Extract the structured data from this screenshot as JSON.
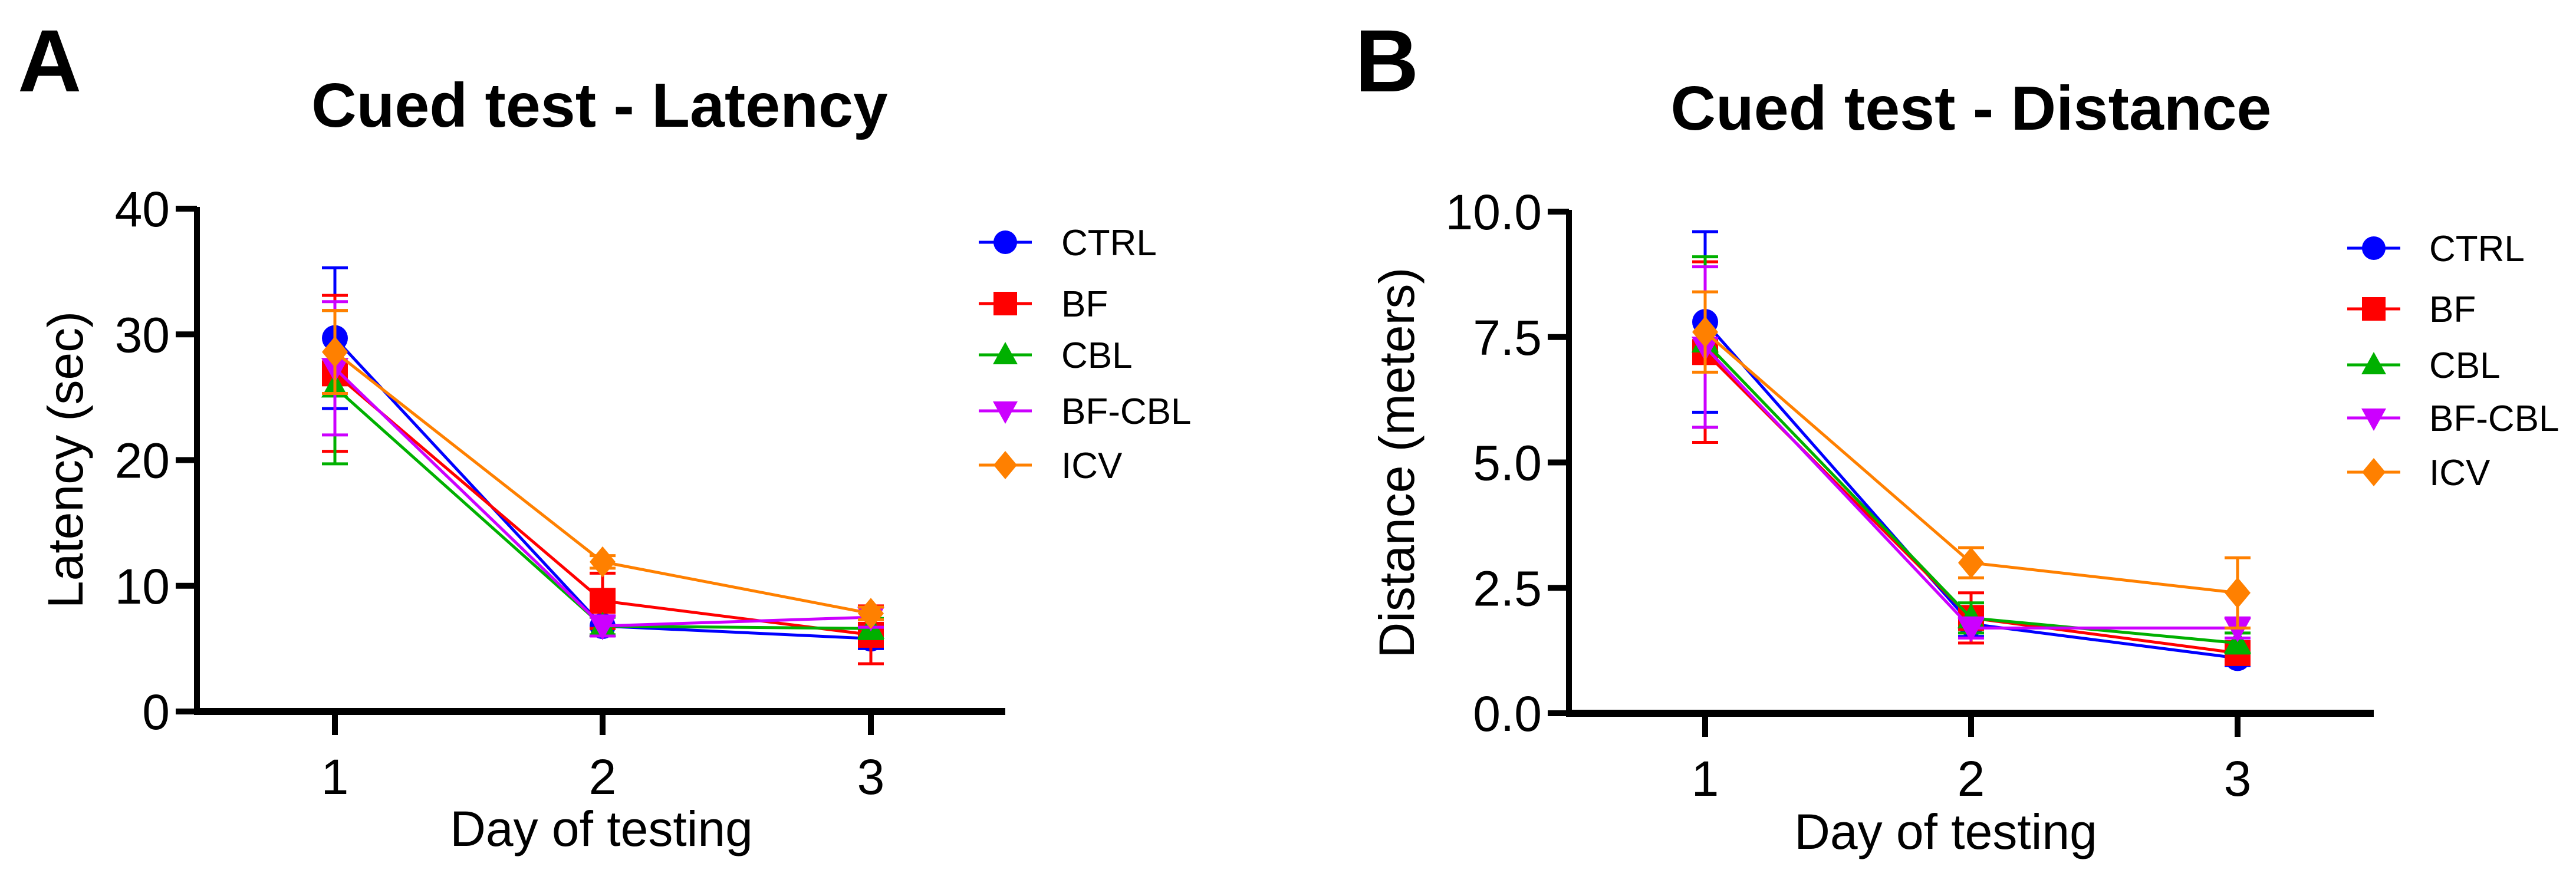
{
  "chart_data": [
    {
      "type": "line",
      "panel": "A",
      "title": "Cued test - Latency",
      "xlabel": "Day of testing",
      "ylabel": "Latency (sec)",
      "x": [
        1,
        2,
        3
      ],
      "xticks": [
        "1",
        "2",
        "3"
      ],
      "ylim": [
        0,
        40
      ],
      "yticks": [
        0,
        10,
        20,
        30,
        40
      ],
      "ytick_labels": [
        "0",
        "10",
        "20",
        "30",
        "40"
      ],
      "grid": false,
      "legend_position": "top-right",
      "series": [
        {
          "name": "CTRL",
          "color": "#0000ff",
          "marker": "circle",
          "values": [
            29.7,
            6.8,
            5.8
          ],
          "err": [
            5.6,
            0.8,
            0.8
          ]
        },
        {
          "name": "BF",
          "color": "#ff0000",
          "marker": "square",
          "values": [
            26.9,
            8.8,
            6.1
          ],
          "err": [
            6.2,
            2.2,
            2.3
          ]
        },
        {
          "name": "CBL",
          "color": "#00b000",
          "marker": "triangle-up",
          "values": [
            25.8,
            6.8,
            6.6
          ],
          "err": [
            6.1,
            0.7,
            0.8
          ]
        },
        {
          "name": "BF-CBL",
          "color": "#cc00ff",
          "marker": "triangle-down",
          "values": [
            27.3,
            6.8,
            7.5
          ],
          "err": [
            5.3,
            0.8,
            0.8
          ]
        },
        {
          "name": "ICV",
          "color": "#ff8000",
          "marker": "diamond",
          "values": [
            28.6,
            11.9,
            7.8
          ],
          "err": [
            3.3,
            0.5,
            0.5
          ]
        }
      ]
    },
    {
      "type": "line",
      "panel": "B",
      "title": "Cued test - Distance",
      "xlabel": "Day of testing",
      "ylabel": "Distance (meters)",
      "x": [
        1,
        2,
        3
      ],
      "xticks": [
        "1",
        "2",
        "3"
      ],
      "ylim": [
        0,
        10
      ],
      "yticks": [
        0,
        2.5,
        5,
        7.5,
        10
      ],
      "ytick_labels": [
        "0.0",
        "2.5",
        "5.0",
        "7.5",
        "10.0"
      ],
      "grid": false,
      "legend_position": "top-right",
      "series": [
        {
          "name": "CTRL",
          "color": "#0000ff",
          "marker": "circle",
          "values": [
            7.8,
            1.78,
            1.1
          ],
          "err": [
            1.8,
            0.25,
            0.15
          ]
        },
        {
          "name": "BF",
          "color": "#ff0000",
          "marker": "square",
          "values": [
            7.2,
            1.9,
            1.2
          ],
          "err": [
            1.8,
            0.5,
            0.2
          ]
        },
        {
          "name": "CBL",
          "color": "#00b000",
          "marker": "triangle-up",
          "values": [
            7.4,
            1.9,
            1.4
          ],
          "err": [
            1.7,
            0.3,
            0.2
          ]
        },
        {
          "name": "BF-CBL",
          "color": "#cc00ff",
          "marker": "triangle-down",
          "values": [
            7.3,
            1.7,
            1.7
          ],
          "err": [
            1.6,
            0.2,
            0.2
          ]
        },
        {
          "name": "ICV",
          "color": "#ff8000",
          "marker": "diamond",
          "values": [
            7.6,
            3.0,
            2.4
          ],
          "err": [
            0.8,
            0.3,
            0.7
          ]
        }
      ]
    }
  ]
}
